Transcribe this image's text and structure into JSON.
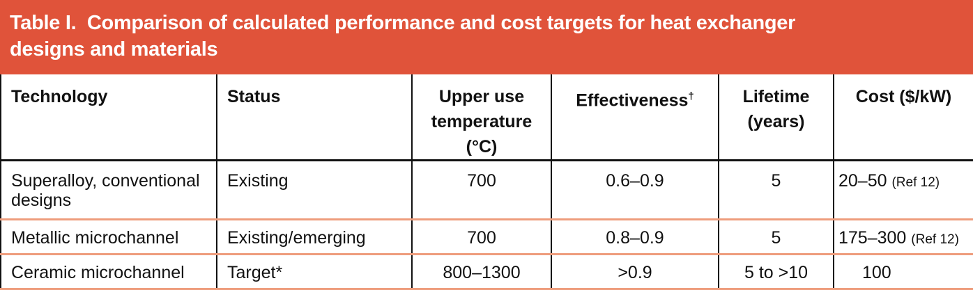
{
  "table": {
    "title": "Table I.  Comparison of calculated performance and cost targets for heat exchanger designs and materials",
    "columns": [
      "Technology",
      "Status",
      "Upper use temperature (°C)",
      "Effectiveness",
      "Lifetime (years)",
      "Cost ($/kW)"
    ],
    "effectiveness_note": "†",
    "rows": [
      [
        "Superalloy, conventional designs",
        "Existing",
        "700",
        "0.6–0.9",
        "5",
        {
          "value": "20–50",
          "ref": "(Ref 12)"
        }
      ],
      [
        "Metallic microchannel",
        "Existing/emerging",
        "700",
        "0.8–0.9",
        "5",
        {
          "value": "175–300",
          "ref": "(Ref 12)"
        }
      ],
      [
        "Ceramic microchannel",
        "Target*",
        "800–1300",
        ">0.9",
        "5 to >10",
        {
          "value": "100"
        }
      ]
    ]
  }
}
